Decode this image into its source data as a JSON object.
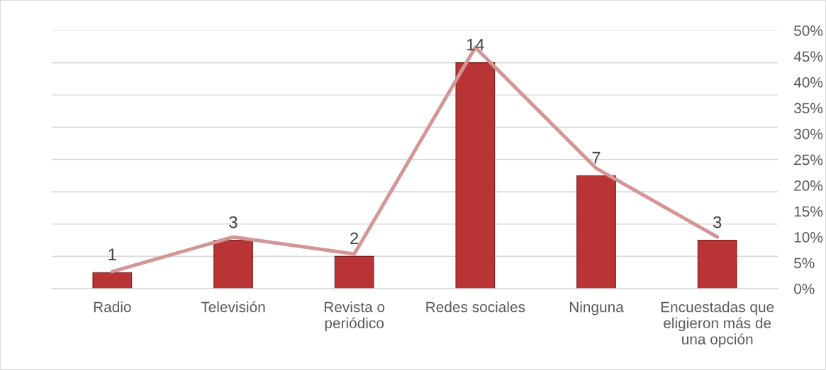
{
  "chart_data": {
    "type": "bar",
    "categories": [
      "Radio",
      "Televisión",
      "Revista o periódico",
      "Redes sociales",
      "Ninguna",
      "Encuestadas que eligieron más de una opción"
    ],
    "series": [
      {
        "color": "#b93535",
        "values": [
          1,
          3,
          2,
          14,
          7,
          3
        ],
        "value_labels": [
          "1",
          "3",
          "2",
          "14",
          "7",
          "3"
        ]
      },
      {
        "type": "line",
        "axis": "y2",
        "color": "#d39696",
        "values": [
          3.3,
          10,
          6.7,
          46.7,
          23.3,
          10
        ]
      }
    ],
    "ylim": [
      0,
      16
    ],
    "yticks": [
      {
        "value": 0,
        "label": null
      },
      {
        "value": 2,
        "label": null
      },
      {
        "value": 4,
        "label": null
      },
      {
        "value": 6,
        "label": null
      },
      {
        "value": 8,
        "label": null
      },
      {
        "value": 10,
        "label": null
      },
      {
        "value": 12,
        "label": null
      },
      {
        "value": 14,
        "label": null
      },
      {
        "value": 16,
        "label": null
      }
    ],
    "y2lim": [
      0,
      50
    ],
    "y2ticks": [
      {
        "value": 0,
        "label": "0%"
      },
      {
        "value": 5,
        "label": "5%"
      },
      {
        "value": 10,
        "label": "10%"
      },
      {
        "value": 15,
        "label": "15%"
      },
      {
        "value": 20,
        "label": "20%"
      },
      {
        "value": 25,
        "label": "25%"
      },
      {
        "value": 30,
        "label": "30%"
      },
      {
        "value": 35,
        "label": "35%"
      },
      {
        "value": 40,
        "label": "40%"
      },
      {
        "value": 45,
        "label": "45%"
      },
      {
        "value": 50,
        "label": "50%"
      }
    ],
    "grid": "y"
  }
}
